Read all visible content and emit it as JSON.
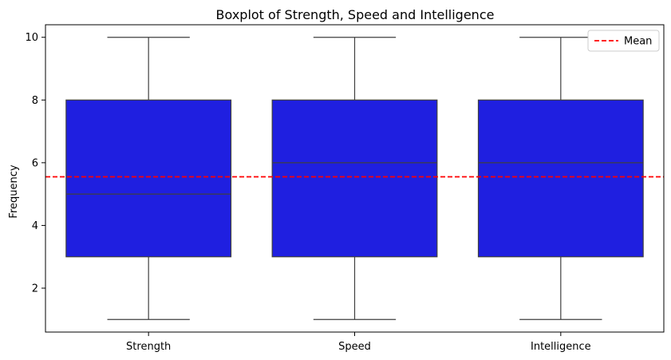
{
  "chart_data": {
    "type": "box",
    "title": "Boxplot of Strength, Speed and Intelligence",
    "xlabel": "",
    "ylabel": "Frequency",
    "ylim": [
      0.6,
      10.4
    ],
    "yticks": [
      2,
      4,
      6,
      8,
      10
    ],
    "categories": [
      "Strength",
      "Speed",
      "Intelligence"
    ],
    "boxes": [
      {
        "category": "Strength",
        "min": 1,
        "q1": 3,
        "median": 5,
        "q3": 8,
        "max": 10
      },
      {
        "category": "Speed",
        "min": 1,
        "q1": 3,
        "median": 6,
        "q3": 8,
        "max": 10
      },
      {
        "category": "Intelligence",
        "min": 1,
        "q1": 3,
        "median": 6,
        "q3": 8,
        "max": 10
      }
    ],
    "mean_line": {
      "label": "Mean",
      "value": 5.55,
      "color": "#ff0000",
      "style": "dashed"
    },
    "box_color": "#1f1fe0",
    "line_color": "#3f3f3f",
    "legend": {
      "position": "top-right",
      "entries": [
        "Mean"
      ]
    },
    "grid": false
  }
}
